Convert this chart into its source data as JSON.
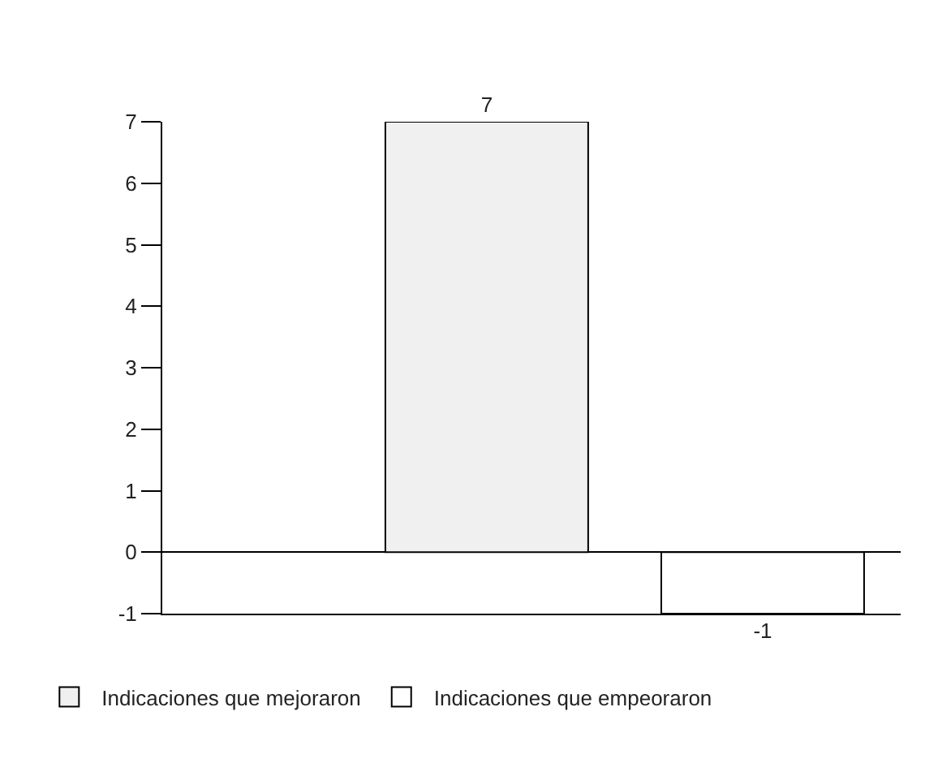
{
  "chart_data": {
    "type": "bar",
    "categories": [
      null
    ],
    "series": [
      {
        "name": "Indicaciones que mejoraron",
        "color": "#f0f0f0",
        "values": [
          7
        ]
      },
      {
        "name": "Indicaciones que empeoraron",
        "color": "#ffffff",
        "values": [
          -1
        ]
      }
    ],
    "ylim": [
      -1,
      7
    ],
    "yticks": [
      -1,
      0,
      1,
      2,
      3,
      4,
      5,
      6,
      7
    ],
    "legend": "bottom left",
    "data_labels": true
  }
}
